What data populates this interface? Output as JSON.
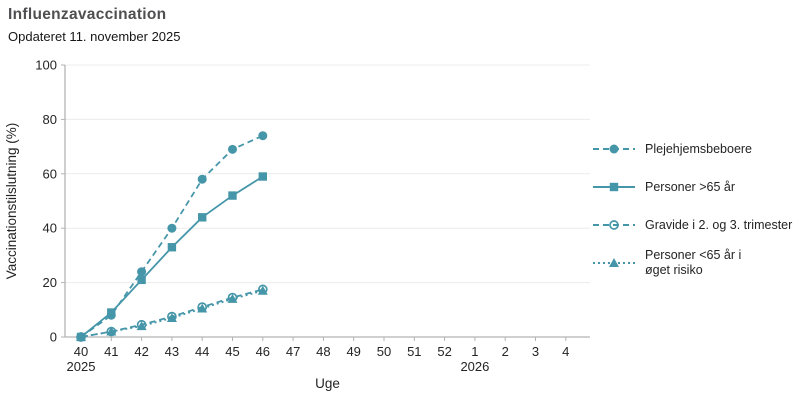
{
  "header": {
    "title": "Influenzavaccination",
    "subtitle": "Opdateret 11. november 2025"
  },
  "colors": {
    "background": "#ffffff",
    "series": "#4696a9",
    "grid": "#ececec",
    "axis": "#b3b3b3",
    "tick_label": "#242424",
    "title": "#4f4f51",
    "subtitle": "#161616",
    "legend_text": "#242424"
  },
  "chart_data": {
    "type": "line",
    "title": "Influenzavaccination",
    "subtitle": "Opdateret 11. november 2025",
    "xlabel": "Uge",
    "ylabel": "Vaccinationstilslutning (%)",
    "ylim": [
      0,
      100
    ],
    "yticks": [
      0,
      20,
      40,
      60,
      80,
      100
    ],
    "grid": "horizontal",
    "legend_position": "right",
    "categories": [
      "40",
      "41",
      "42",
      "43",
      "44",
      "45",
      "46",
      "47",
      "48",
      "49",
      "50",
      "51",
      "52",
      "1",
      "2",
      "3",
      "4"
    ],
    "year_labels": [
      {
        "text": "2025",
        "at_category": "40"
      },
      {
        "text": "2026",
        "at_category": "1"
      }
    ],
    "series": [
      {
        "name": "Plejehjemsbeboere",
        "legend_label": "Plejehjemsbeboere",
        "marker": "circle-filled",
        "line_style": "dashed",
        "x": [
          "40",
          "41",
          "42",
          "43",
          "44",
          "45",
          "46"
        ],
        "values": [
          0,
          8,
          24,
          40,
          58,
          69,
          74
        ]
      },
      {
        "name": "Personer >65 år",
        "legend_label": "Personer >65 år",
        "marker": "square-filled",
        "line_style": "solid",
        "x": [
          "40",
          "41",
          "42",
          "43",
          "44",
          "45",
          "46"
        ],
        "values": [
          0,
          9,
          21,
          33,
          44,
          52,
          59
        ]
      },
      {
        "name": "Gravide i 2. og 3. trimester",
        "legend_label": "Gravide i 2. og 3. trimester",
        "marker": "circle-open",
        "line_style": "dashed",
        "x": [
          "40",
          "41",
          "42",
          "43",
          "44",
          "45",
          "46"
        ],
        "values": [
          0,
          2,
          4.5,
          7.5,
          11,
          14.5,
          17.5
        ]
      },
      {
        "name": "Personer <65 år i øget risiko",
        "legend_label": "Personer <65 år i\nøget risiko",
        "marker": "triangle-filled",
        "line_style": "dotted",
        "x": [
          "40",
          "41",
          "42",
          "43",
          "44",
          "45",
          "46"
        ],
        "values": [
          0,
          2,
          4,
          7,
          10.5,
          14,
          17
        ]
      }
    ]
  }
}
